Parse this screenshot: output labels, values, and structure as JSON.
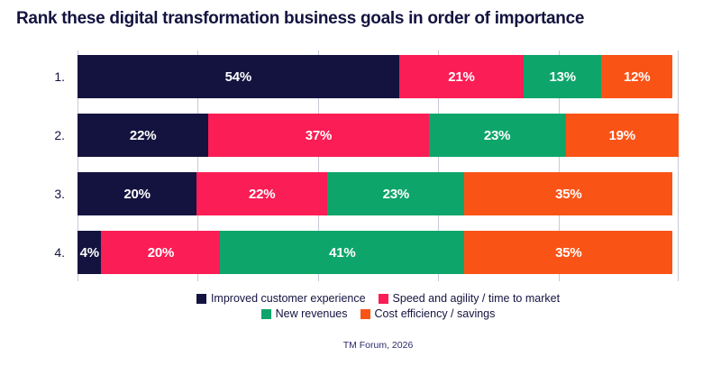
{
  "title": "Rank these digital transformation business goals in order of importance",
  "source": "TM Forum, 2026",
  "colors": {
    "background": "#FFFFFF",
    "text_navy": "#141340",
    "gridline": "#C9C9D6",
    "bar_label": "#FFFFFF"
  },
  "chart_data": {
    "type": "bar",
    "orientation": "horizontal",
    "stacked": true,
    "title": "Rank these digital transformation business goals in order of importance",
    "categories": [
      "1.",
      "2.",
      "3.",
      "4."
    ],
    "series": [
      {
        "name": "Improved customer experience",
        "color": "#141340",
        "values": [
          54,
          22,
          20,
          4
        ]
      },
      {
        "name": "Speed and agility / time to market",
        "color": "#FB1D55",
        "values": [
          21,
          37,
          22,
          20
        ]
      },
      {
        "name": "New revenues",
        "color": "#0EA56B",
        "values": [
          13,
          23,
          23,
          41
        ]
      },
      {
        "name": "Cost efficiency / savings",
        "color": "#FA5316",
        "values": [
          12,
          19,
          35,
          35
        ]
      }
    ],
    "value_suffix": "%",
    "xlim": [
      0,
      101
    ],
    "grid": true,
    "gridline_count": 6,
    "legend_position": "bottom",
    "legend_rows": [
      [
        "Improved customer experience",
        "Speed and agility / time to market"
      ],
      [
        "New revenues",
        "Cost efficiency / savings"
      ]
    ],
    "footnote": "TM Forum, 2026"
  }
}
